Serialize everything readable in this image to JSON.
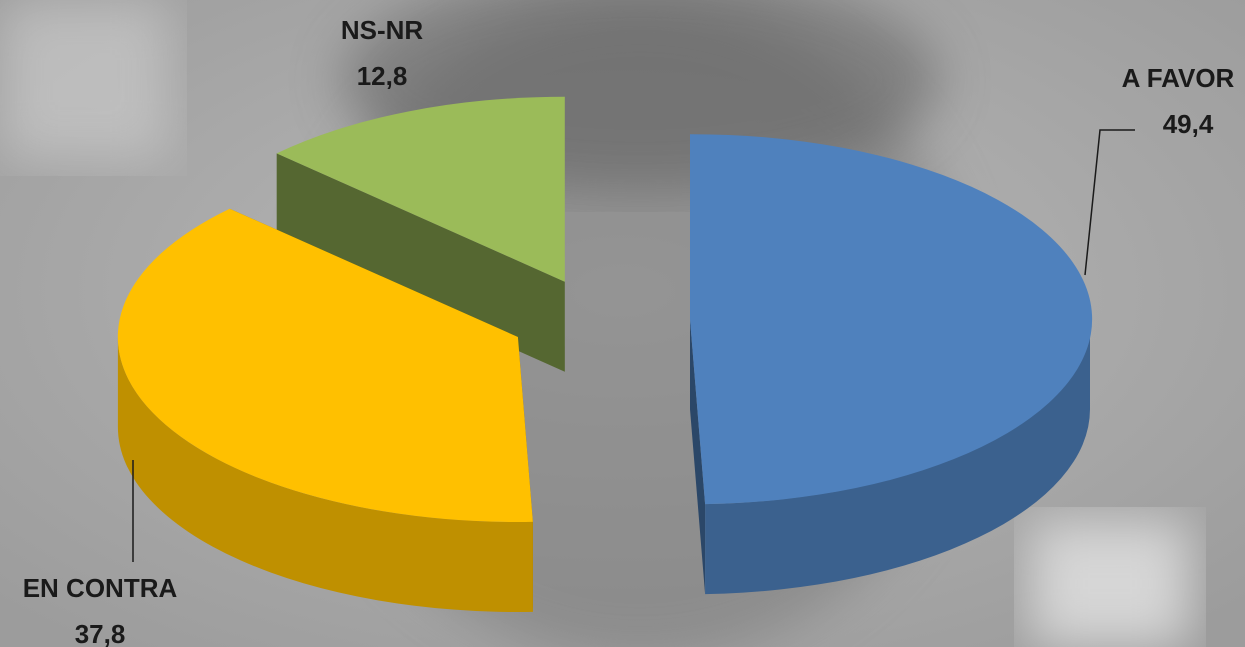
{
  "chart_data": {
    "type": "pie",
    "categories": [
      "A FAVOR",
      "EN CONTRA",
      "NS-NR"
    ],
    "values": [
      49.4,
      37.8,
      12.8
    ],
    "value_labels": [
      "49,4",
      "37,8",
      "12,8"
    ],
    "colors": [
      "#4f81bd",
      "#ffc000",
      "#9bbb59"
    ]
  }
}
